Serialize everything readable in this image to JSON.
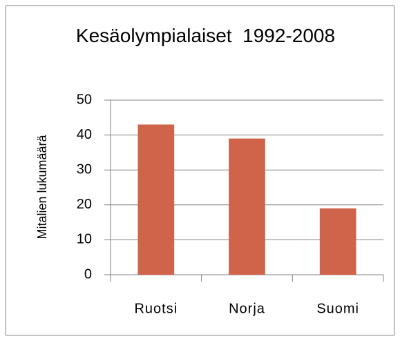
{
  "chart_data": {
    "type": "bar",
    "title": "Kesäolympialaiset  1992-2008",
    "y_label": "Mitalien lukumäärä",
    "categories": [
      "Ruotsi",
      "Norja",
      "Suomi"
    ],
    "values": [
      43,
      39,
      19
    ],
    "color": "#d0644b",
    "ylim": [
      0,
      50
    ],
    "yticks": [
      0,
      10,
      20,
      30,
      40,
      50
    ],
    "grid": true
  }
}
